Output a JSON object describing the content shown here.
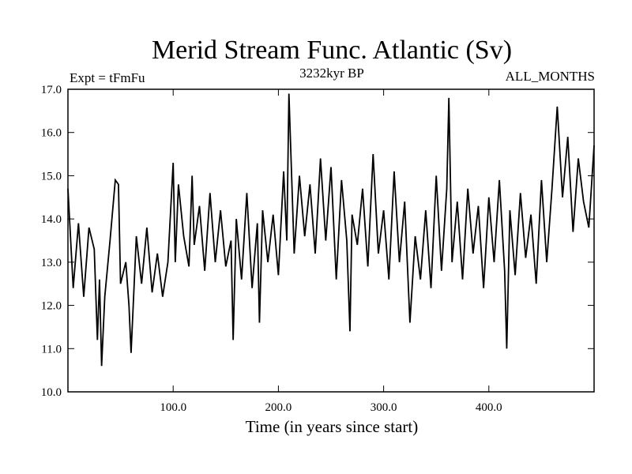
{
  "chart_data": {
    "type": "line",
    "title": "Merid Stream Func. Atlantic (Sv)",
    "subtitle_left": "Expt = tFmFu",
    "subtitle_center": "3232kyr BP",
    "subtitle_right": "ALL_MONTHS",
    "xlabel": "Time (in years since start)",
    "ylabel": "",
    "xlim": [
      0,
      500
    ],
    "ylim": [
      10.0,
      17.0
    ],
    "x_ticks": [
      {
        "value": 100,
        "label": "100.0"
      },
      {
        "value": 200,
        "label": "200.0"
      },
      {
        "value": 300,
        "label": "300.0"
      },
      {
        "value": 400,
        "label": "400.0"
      }
    ],
    "y_ticks": [
      {
        "value": 10.0,
        "label": "10.0"
      },
      {
        "value": 11.0,
        "label": "11.0"
      },
      {
        "value": 12.0,
        "label": "12.0"
      },
      {
        "value": 13.0,
        "label": "13.0"
      },
      {
        "value": 14.0,
        "label": "14.0"
      },
      {
        "value": 15.0,
        "label": "15.0"
      },
      {
        "value": 16.0,
        "label": "16.0"
      },
      {
        "value": 17.0,
        "label": "17.0"
      }
    ],
    "grid": false,
    "series": [
      {
        "name": "Merid Stream Func. Atlantic",
        "color": "#000000",
        "x": [
          0,
          5,
          10,
          15,
          20,
          25,
          28,
          30,
          32,
          35,
          40,
          45,
          48,
          50,
          55,
          58,
          60,
          65,
          70,
          75,
          80,
          85,
          90,
          95,
          100,
          102,
          105,
          110,
          115,
          118,
          120,
          125,
          130,
          135,
          140,
          145,
          150,
          155,
          157,
          160,
          165,
          170,
          175,
          180,
          182,
          185,
          190,
          195,
          200,
          205,
          208,
          210,
          215,
          220,
          225,
          230,
          235,
          240,
          245,
          250,
          255,
          260,
          265,
          268,
          270,
          275,
          280,
          285,
          290,
          295,
          300,
          305,
          310,
          315,
          320,
          325,
          330,
          335,
          340,
          345,
          350,
          355,
          360,
          362,
          365,
          370,
          375,
          380,
          385,
          390,
          395,
          400,
          405,
          410,
          415,
          417,
          420,
          425,
          430,
          435,
          440,
          445,
          450,
          455,
          460,
          465,
          470,
          475,
          480,
          485,
          490,
          495,
          500
        ],
        "values": [
          14.7,
          12.4,
          13.9,
          12.2,
          13.8,
          13.3,
          11.2,
          12.6,
          10.6,
          12.2,
          13.5,
          14.9,
          14.8,
          12.5,
          13.0,
          12.0,
          10.9,
          13.6,
          12.5,
          13.8,
          12.3,
          13.2,
          12.2,
          13.0,
          15.3,
          13.0,
          14.8,
          13.6,
          12.9,
          15.0,
          13.4,
          14.3,
          12.8,
          14.6,
          13.0,
          14.2,
          12.9,
          13.5,
          11.2,
          14.0,
          12.6,
          14.6,
          12.4,
          13.9,
          11.6,
          14.2,
          13.0,
          14.1,
          12.7,
          15.1,
          13.5,
          16.9,
          13.2,
          15.0,
          13.6,
          14.8,
          13.2,
          15.4,
          13.5,
          15.2,
          12.6,
          14.9,
          13.5,
          11.4,
          14.1,
          13.4,
          14.7,
          12.9,
          15.5,
          13.2,
          14.2,
          12.6,
          15.1,
          13.0,
          14.4,
          11.6,
          13.6,
          12.6,
          14.2,
          12.4,
          15.0,
          12.8,
          14.7,
          16.8,
          13.0,
          14.4,
          12.6,
          14.7,
          13.2,
          14.3,
          12.4,
          14.5,
          13.0,
          14.9,
          12.8,
          11.0,
          14.2,
          12.7,
          14.6,
          13.1,
          14.1,
          12.5,
          14.9,
          13.0,
          14.7,
          16.6,
          14.5,
          15.9,
          13.7,
          15.4,
          14.4,
          13.8,
          15.7
        ]
      }
    ]
  }
}
